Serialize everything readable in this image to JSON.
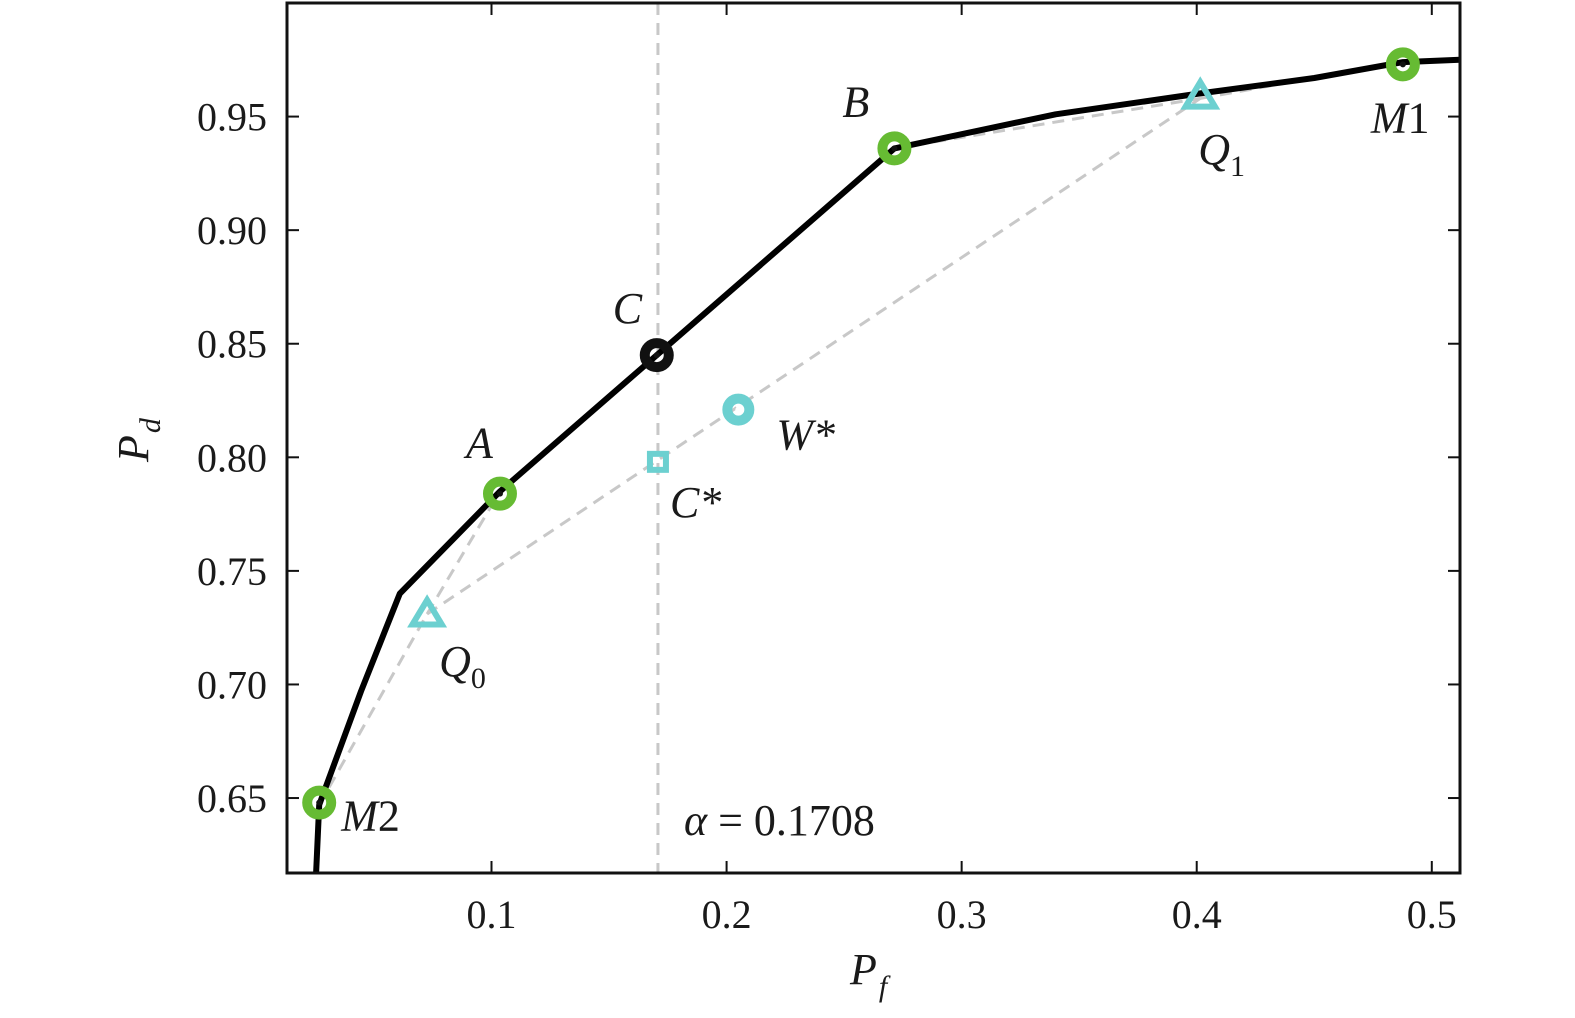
{
  "chart_data": {
    "type": "line",
    "title": "",
    "xlabel": {
      "main": "P",
      "sub": "f"
    },
    "ylabel": {
      "main": "P",
      "sub": "d"
    },
    "xlim": [
      0.013,
      0.512
    ],
    "ylim": [
      0.617,
      1.0
    ],
    "xticks": [
      {
        "value": 0.1,
        "label": "0.1"
      },
      {
        "value": 0.2,
        "label": "0.2"
      },
      {
        "value": 0.3,
        "label": "0.3"
      },
      {
        "value": 0.4,
        "label": "0.4"
      },
      {
        "value": 0.5,
        "label": "0.5"
      }
    ],
    "yticks": [
      {
        "value": 0.65,
        "label": "0.65"
      },
      {
        "value": 0.7,
        "label": "0.70"
      },
      {
        "value": 0.75,
        "label": "0.75"
      },
      {
        "value": 0.8,
        "label": "0.80"
      },
      {
        "value": 0.85,
        "label": "0.85"
      },
      {
        "value": 0.9,
        "label": "0.90"
      },
      {
        "value": 0.95,
        "label": "0.95"
      }
    ],
    "grid": false,
    "curve": {
      "color": "#000000",
      "points": [
        [
          0.0254,
          0.617
        ],
        [
          0.0267,
          0.647
        ],
        [
          0.0445,
          0.697
        ],
        [
          0.061,
          0.74
        ],
        [
          0.1036,
          0.785
        ],
        [
          0.1703,
          0.845
        ],
        [
          0.2714,
          0.936
        ],
        [
          0.34,
          0.951
        ],
        [
          0.4,
          0.96
        ],
        [
          0.45,
          0.967
        ],
        [
          0.4877,
          0.974
        ],
        [
          0.512,
          0.975
        ]
      ]
    },
    "dashed_lines": {
      "color": "#c8c8c8",
      "segments": [
        [
          [
            0.0267,
            0.647
          ],
          [
            0.0726,
            0.731
          ]
        ],
        [
          [
            0.0726,
            0.731
          ],
          [
            0.1036,
            0.785
          ]
        ],
        [
          [
            0.0726,
            0.731
          ],
          [
            0.4015,
            0.958
          ]
        ],
        [
          [
            0.2714,
            0.936
          ],
          [
            0.4015,
            0.958
          ]
        ],
        [
          [
            0.4015,
            0.958
          ],
          [
            0.4877,
            0.974
          ]
        ]
      ],
      "vertical_x": 0.1708
    },
    "points": [
      {
        "id": "M2",
        "x": 0.0267,
        "y": 0.648,
        "marker": "ring",
        "color": "#66bb33",
        "label": "M",
        "sub": "2",
        "sub_italic": false
      },
      {
        "id": "A",
        "x": 0.1036,
        "y": 0.784,
        "marker": "ring",
        "color": "#66bb33",
        "label": "A",
        "sub": "",
        "sub_italic": false
      },
      {
        "id": "B",
        "x": 0.2714,
        "y": 0.936,
        "marker": "ring",
        "color": "#66bb33",
        "label": "B",
        "sub": "",
        "sub_italic": false
      },
      {
        "id": "M1",
        "x": 0.4877,
        "y": 0.973,
        "marker": "ring",
        "color": "#66bb33",
        "label": "M",
        "sub": "1",
        "sub_italic": false
      },
      {
        "id": "C",
        "x": 0.1703,
        "y": 0.845,
        "marker": "ring",
        "color": "#111111",
        "label": "C",
        "sub": "",
        "sub_italic": false
      },
      {
        "id": "Q0",
        "x": 0.0726,
        "y": 0.731,
        "marker": "triangle",
        "color": "#6cd0d0",
        "label": "Q",
        "sub": "0",
        "sub_italic": false
      },
      {
        "id": "Q1",
        "x": 0.4015,
        "y": 0.959,
        "marker": "triangle",
        "color": "#6cd0d0",
        "label": "Q",
        "sub": "1",
        "sub_italic": false
      },
      {
        "id": "W*",
        "x": 0.205,
        "y": 0.821,
        "marker": "ring",
        "color": "#6cd0d0",
        "label": "W*",
        "sub": "",
        "sub_italic": false
      },
      {
        "id": "C*",
        "x": 0.1708,
        "y": 0.798,
        "marker": "square",
        "color": "#6cd0d0",
        "label": "C*",
        "sub": "",
        "sub_italic": false
      }
    ],
    "annotation": {
      "text": "α = 0.1708",
      "alpha": "α",
      "rest": " = 0.1708"
    }
  }
}
